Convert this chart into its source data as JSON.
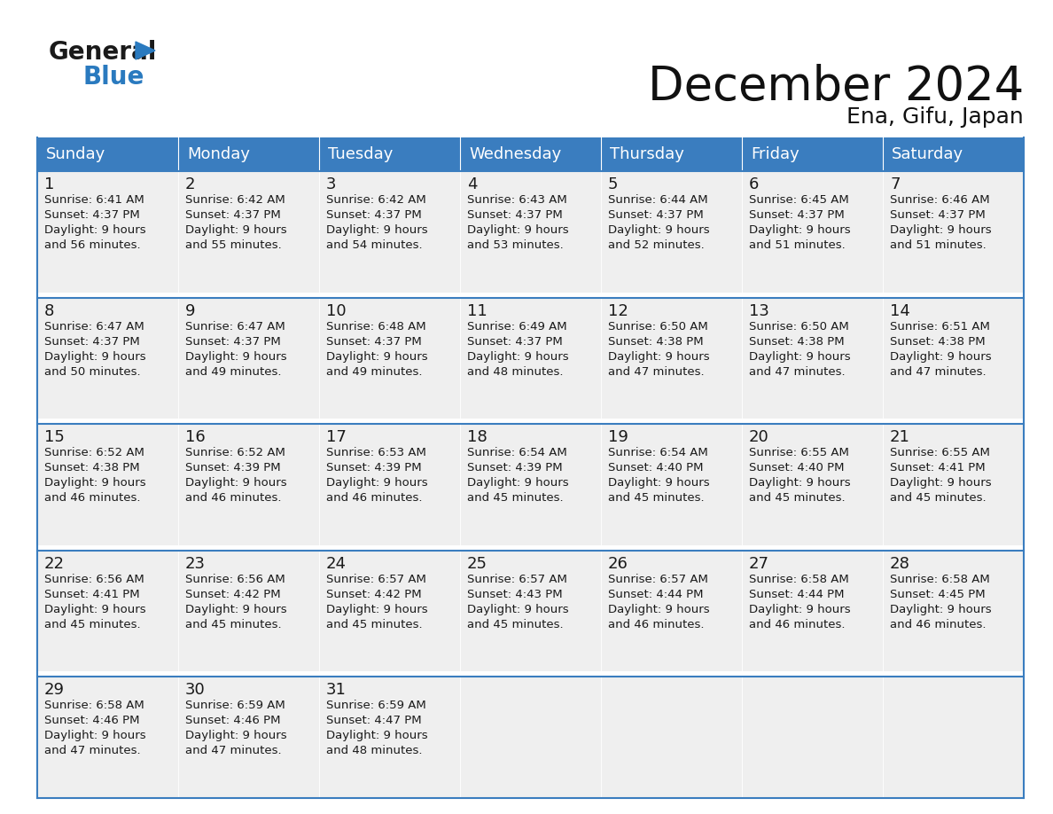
{
  "title": "December 2024",
  "subtitle": "Ena, Gifu, Japan",
  "header_color": "#3a7dbf",
  "header_text_color": "#ffffff",
  "cell_bg_even": "#f0f0f0",
  "cell_bg_odd": "#e8e8e8",
  "cell_bg": "#efefef",
  "border_color": "#3a7dbf",
  "text_color": "#1a1a1a",
  "day_names": [
    "Sunday",
    "Monday",
    "Tuesday",
    "Wednesday",
    "Thursday",
    "Friday",
    "Saturday"
  ],
  "days": [
    {
      "date": 1,
      "col": 0,
      "row": 0,
      "sunrise": "6:41 AM",
      "sunset": "4:37 PM",
      "daylight": "9 hours",
      "daylight2": "and 56 minutes."
    },
    {
      "date": 2,
      "col": 1,
      "row": 0,
      "sunrise": "6:42 AM",
      "sunset": "4:37 PM",
      "daylight": "9 hours",
      "daylight2": "and 55 minutes."
    },
    {
      "date": 3,
      "col": 2,
      "row": 0,
      "sunrise": "6:42 AM",
      "sunset": "4:37 PM",
      "daylight": "9 hours",
      "daylight2": "and 54 minutes."
    },
    {
      "date": 4,
      "col": 3,
      "row": 0,
      "sunrise": "6:43 AM",
      "sunset": "4:37 PM",
      "daylight": "9 hours",
      "daylight2": "and 53 minutes."
    },
    {
      "date": 5,
      "col": 4,
      "row": 0,
      "sunrise": "6:44 AM",
      "sunset": "4:37 PM",
      "daylight": "9 hours",
      "daylight2": "and 52 minutes."
    },
    {
      "date": 6,
      "col": 5,
      "row": 0,
      "sunrise": "6:45 AM",
      "sunset": "4:37 PM",
      "daylight": "9 hours",
      "daylight2": "and 51 minutes."
    },
    {
      "date": 7,
      "col": 6,
      "row": 0,
      "sunrise": "6:46 AM",
      "sunset": "4:37 PM",
      "daylight": "9 hours",
      "daylight2": "and 51 minutes."
    },
    {
      "date": 8,
      "col": 0,
      "row": 1,
      "sunrise": "6:47 AM",
      "sunset": "4:37 PM",
      "daylight": "9 hours",
      "daylight2": "and 50 minutes."
    },
    {
      "date": 9,
      "col": 1,
      "row": 1,
      "sunrise": "6:47 AM",
      "sunset": "4:37 PM",
      "daylight": "9 hours",
      "daylight2": "and 49 minutes."
    },
    {
      "date": 10,
      "col": 2,
      "row": 1,
      "sunrise": "6:48 AM",
      "sunset": "4:37 PM",
      "daylight": "9 hours",
      "daylight2": "and 49 minutes."
    },
    {
      "date": 11,
      "col": 3,
      "row": 1,
      "sunrise": "6:49 AM",
      "sunset": "4:37 PM",
      "daylight": "9 hours",
      "daylight2": "and 48 minutes."
    },
    {
      "date": 12,
      "col": 4,
      "row": 1,
      "sunrise": "6:50 AM",
      "sunset": "4:38 PM",
      "daylight": "9 hours",
      "daylight2": "and 47 minutes."
    },
    {
      "date": 13,
      "col": 5,
      "row": 1,
      "sunrise": "6:50 AM",
      "sunset": "4:38 PM",
      "daylight": "9 hours",
      "daylight2": "and 47 minutes."
    },
    {
      "date": 14,
      "col": 6,
      "row": 1,
      "sunrise": "6:51 AM",
      "sunset": "4:38 PM",
      "daylight": "9 hours",
      "daylight2": "and 47 minutes."
    },
    {
      "date": 15,
      "col": 0,
      "row": 2,
      "sunrise": "6:52 AM",
      "sunset": "4:38 PM",
      "daylight": "9 hours",
      "daylight2": "and 46 minutes."
    },
    {
      "date": 16,
      "col": 1,
      "row": 2,
      "sunrise": "6:52 AM",
      "sunset": "4:39 PM",
      "daylight": "9 hours",
      "daylight2": "and 46 minutes."
    },
    {
      "date": 17,
      "col": 2,
      "row": 2,
      "sunrise": "6:53 AM",
      "sunset": "4:39 PM",
      "daylight": "9 hours",
      "daylight2": "and 46 minutes."
    },
    {
      "date": 18,
      "col": 3,
      "row": 2,
      "sunrise": "6:54 AM",
      "sunset": "4:39 PM",
      "daylight": "9 hours",
      "daylight2": "and 45 minutes."
    },
    {
      "date": 19,
      "col": 4,
      "row": 2,
      "sunrise": "6:54 AM",
      "sunset": "4:40 PM",
      "daylight": "9 hours",
      "daylight2": "and 45 minutes."
    },
    {
      "date": 20,
      "col": 5,
      "row": 2,
      "sunrise": "6:55 AM",
      "sunset": "4:40 PM",
      "daylight": "9 hours",
      "daylight2": "and 45 minutes."
    },
    {
      "date": 21,
      "col": 6,
      "row": 2,
      "sunrise": "6:55 AM",
      "sunset": "4:41 PM",
      "daylight": "9 hours",
      "daylight2": "and 45 minutes."
    },
    {
      "date": 22,
      "col": 0,
      "row": 3,
      "sunrise": "6:56 AM",
      "sunset": "4:41 PM",
      "daylight": "9 hours",
      "daylight2": "and 45 minutes."
    },
    {
      "date": 23,
      "col": 1,
      "row": 3,
      "sunrise": "6:56 AM",
      "sunset": "4:42 PM",
      "daylight": "9 hours",
      "daylight2": "and 45 minutes."
    },
    {
      "date": 24,
      "col": 2,
      "row": 3,
      "sunrise": "6:57 AM",
      "sunset": "4:42 PM",
      "daylight": "9 hours",
      "daylight2": "and 45 minutes."
    },
    {
      "date": 25,
      "col": 3,
      "row": 3,
      "sunrise": "6:57 AM",
      "sunset": "4:43 PM",
      "daylight": "9 hours",
      "daylight2": "and 45 minutes."
    },
    {
      "date": 26,
      "col": 4,
      "row": 3,
      "sunrise": "6:57 AM",
      "sunset": "4:44 PM",
      "daylight": "9 hours",
      "daylight2": "and 46 minutes."
    },
    {
      "date": 27,
      "col": 5,
      "row": 3,
      "sunrise": "6:58 AM",
      "sunset": "4:44 PM",
      "daylight": "9 hours",
      "daylight2": "and 46 minutes."
    },
    {
      "date": 28,
      "col": 6,
      "row": 3,
      "sunrise": "6:58 AM",
      "sunset": "4:45 PM",
      "daylight": "9 hours",
      "daylight2": "and 46 minutes."
    },
    {
      "date": 29,
      "col": 0,
      "row": 4,
      "sunrise": "6:58 AM",
      "sunset": "4:46 PM",
      "daylight": "9 hours",
      "daylight2": "and 47 minutes."
    },
    {
      "date": 30,
      "col": 1,
      "row": 4,
      "sunrise": "6:59 AM",
      "sunset": "4:46 PM",
      "daylight": "9 hours",
      "daylight2": "and 47 minutes."
    },
    {
      "date": 31,
      "col": 2,
      "row": 4,
      "sunrise": "6:59 AM",
      "sunset": "4:47 PM",
      "daylight": "9 hours",
      "daylight2": "and 48 minutes."
    }
  ],
  "num_rows": 5,
  "num_cols": 7
}
